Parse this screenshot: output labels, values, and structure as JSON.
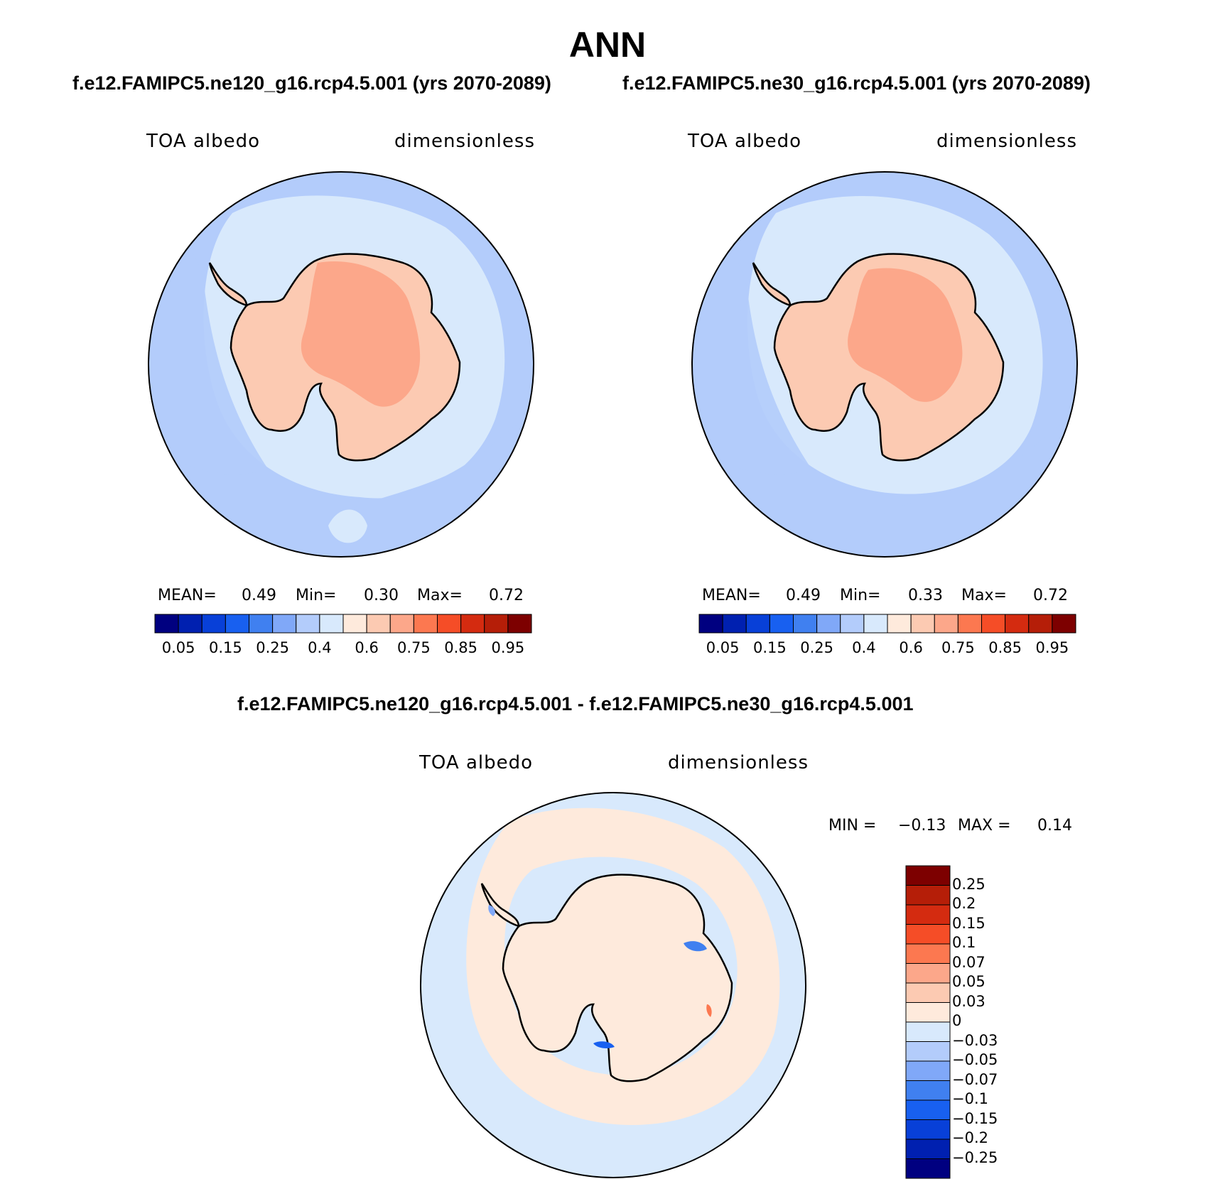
{
  "figure": {
    "title": "ANN",
    "colors": {
      "abs_levels": [
        "#000080",
        "#0020b0",
        "#0840d8",
        "#1860f0",
        "#4080f0",
        "#80a8f8",
        "#b3ccfb",
        "#d8e9fc",
        "#feeadc",
        "#fccab2",
        "#fca78a",
        "#fc7850",
        "#f54d27",
        "#d42b10",
        "#b51e08",
        "#7d0000"
      ],
      "diff_levels": [
        "#000080",
        "#0020b0",
        "#0840d8",
        "#1860f0",
        "#4080f0",
        "#80a8f8",
        "#b3ccfb",
        "#d8e9fc",
        "#feeadc",
        "#fccab2",
        "#fca78a",
        "#fc7850",
        "#f54d27",
        "#d42b10",
        "#b51e08",
        "#7d0000"
      ],
      "land_fill": "#fccab2",
      "plateau_fill": "#fca78a",
      "coast_line": "#000000"
    },
    "panels": [
      {
        "id": "left",
        "case_title": "f.e12.FAMIPC5.ne120_g16.rcp4.5.001 (yrs 2070-2089)",
        "variable": "TOA albedo",
        "units": "dimensionless",
        "mean_label": "MEAN=",
        "mean_value": "0.49",
        "min_label": "Min=",
        "min_value": "0.30",
        "max_label": "Max=",
        "max_value": "0.72"
      },
      {
        "id": "right",
        "case_title": "f.e12.FAMIPC5.ne30_g16.rcp4.5.001 (yrs 2070-2089)",
        "variable": "TOA albedo",
        "units": "dimensionless",
        "mean_label": "MEAN=",
        "mean_value": "0.49",
        "min_label": "Min=",
        "min_value": "0.33",
        "max_label": "Max=",
        "max_value": "0.72"
      }
    ],
    "abs_colorbar_ticks": [
      "0.05",
      "0.15",
      "0.25",
      "0.4",
      "0.6",
      "0.75",
      "0.85",
      "0.95"
    ],
    "difference": {
      "title": "f.e12.FAMIPC5.ne120_g16.rcp4.5.001 - f.e12.FAMIPC5.ne30_g16.rcp4.5.001",
      "variable": "TOA albedo",
      "units": "dimensionless",
      "min_label": "MIN =",
      "min_value": "−0.13",
      "max_label": "MAX =",
      "max_value": "0.14",
      "colorbar_ticks": [
        "0.25",
        "0.2",
        "0.15",
        "0.1",
        "0.07",
        "0.05",
        "0.03",
        "0",
        "−0.03",
        "−0.05",
        "−0.07",
        "−0.1",
        "−0.15",
        "−0.2",
        "−0.25"
      ]
    }
  }
}
